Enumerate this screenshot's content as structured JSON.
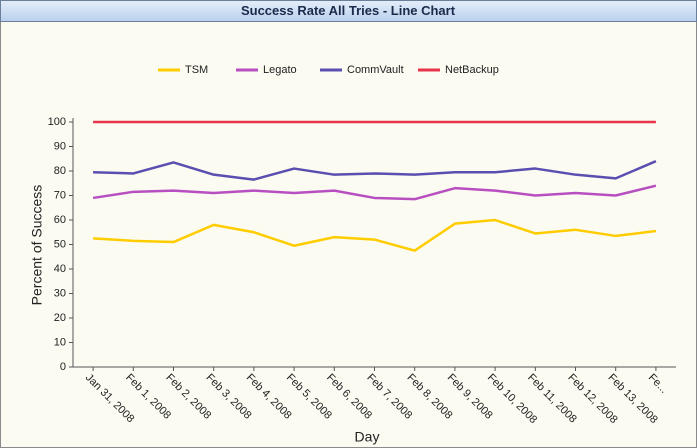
{
  "chart_data": {
    "type": "line",
    "title": "Success Rate All Tries - Line Chart",
    "x_label": "Day",
    "y_label": "Percent of Success",
    "categories": [
      "Jan 31, 2008",
      "Feb 1, 2008",
      "Feb 2, 2008",
      "Feb 3, 2008",
      "Feb 4, 2008",
      "Feb 5, 2008",
      "Feb 6, 2008",
      "Feb 7, 2008",
      "Feb 8, 2008",
      "Feb 9, 2008",
      "Feb 10, 2008",
      "Feb 11, 2008",
      "Feb 12, 2008",
      "Feb 13, 2008",
      "Fe..."
    ],
    "series": [
      {
        "name": "TSM",
        "color": "#ffcc00",
        "values": [
          52.5,
          51.5,
          51,
          58,
          55,
          49.5,
          53,
          52,
          47.5,
          58.5,
          60,
          54.5,
          56,
          53.5,
          55.5
        ]
      },
      {
        "name": "Legato",
        "color": "#b84fc0",
        "values": [
          69,
          71.5,
          72,
          71,
          72,
          71,
          72,
          69,
          68.5,
          73,
          72,
          70,
          71,
          70,
          74
        ]
      },
      {
        "name": "CommVault",
        "color": "#5a4fb0",
        "values": [
          79.5,
          79,
          83.5,
          78.5,
          76.5,
          81,
          78.5,
          79,
          78.5,
          79.5,
          79.5,
          81,
          78.5,
          77,
          84
        ]
      },
      {
        "name": "NetBackup",
        "color": "#e8334a",
        "values": [
          100,
          100,
          100,
          100,
          100,
          100,
          100,
          100,
          100,
          100,
          100,
          100,
          100,
          100,
          100
        ]
      }
    ],
    "ylim": [
      0,
      100
    ],
    "yticks": [
      0,
      10,
      20,
      30,
      40,
      50,
      60,
      70,
      80,
      90,
      100
    ],
    "grid": false,
    "legend": "top"
  }
}
